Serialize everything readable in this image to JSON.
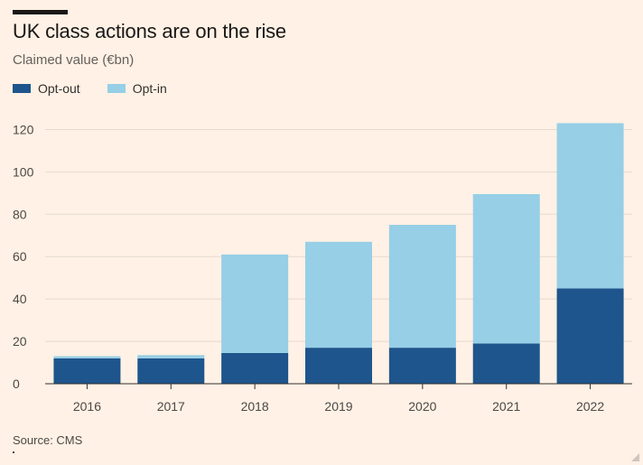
{
  "title": "UK class actions are on the rise",
  "subtitle": "Claimed value (€bn)",
  "legend": [
    {
      "label": "Opt-out",
      "color": "#1e558c"
    },
    {
      "label": "Opt-in",
      "color": "#96cfe6"
    }
  ],
  "source": "Source: CMS",
  "chart_data": {
    "type": "bar",
    "stacked": true,
    "categories": [
      "2016",
      "2017",
      "2018",
      "2019",
      "2020",
      "2021",
      "2022"
    ],
    "series": [
      {
        "name": "Opt-out",
        "color": "#1e558c",
        "values": [
          12,
          12,
          14.5,
          17,
          17,
          19,
          45
        ]
      },
      {
        "name": "Opt-in",
        "color": "#96cfe6",
        "values": [
          1,
          1.5,
          46.5,
          50,
          58,
          70.5,
          78
        ]
      }
    ],
    "ylim": [
      0,
      130
    ],
    "yticks": [
      0,
      20,
      40,
      60,
      80,
      100,
      120
    ],
    "xlabel": "",
    "ylabel": "",
    "grid": true,
    "legend_position": "top-left"
  }
}
